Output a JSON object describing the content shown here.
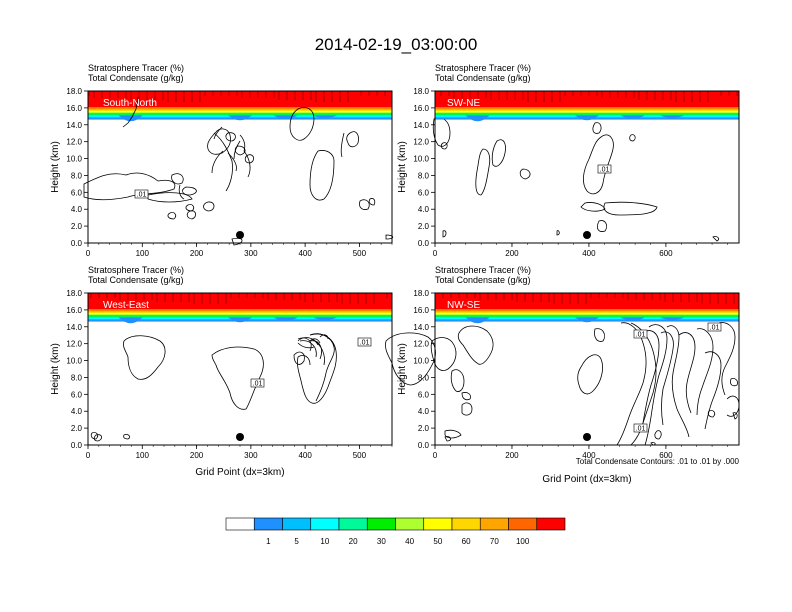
{
  "title": "2014-02-19_03:00:00",
  "header_line1": "Stratosphere Tracer   (%)",
  "header_line2": "Total Condensate   (g/kg)",
  "xlabel": "Grid Point (dx=3km)",
  "ylabel": "Height (km)",
  "contour_note": "Total Condensate Contours: .01 to .01 by .000",
  "contour_label": ".01",
  "colorbar": {
    "labels": [
      "1",
      "5",
      "10",
      "20",
      "30",
      "40",
      "50",
      "60",
      "70",
      "100"
    ],
    "colors": [
      "#ffffff",
      "#1e90ff",
      "#00bfff",
      "#00ffff",
      "#00fa9a",
      "#00ee00",
      "#adff2f",
      "#ffff00",
      "#ffd700",
      "#ffa500",
      "#ff6600",
      "#ff0000"
    ]
  },
  "chart_data": [
    {
      "type": "contour",
      "region": "South-North",
      "x_ticks": [
        "0",
        "100",
        "200",
        "300",
        "400",
        "500"
      ],
      "x_tick_values": [
        0,
        100,
        200,
        300,
        400,
        500
      ],
      "xlim": [
        0,
        560
      ],
      "y_ticks": [
        "0.0",
        "2.0",
        "4.0",
        "6.0",
        "8.0",
        "10.0",
        "12.0",
        "14.0",
        "16.0",
        "18.0"
      ],
      "ylim": [
        0,
        18
      ],
      "marker_x": 280,
      "tropopause_km": 15.6
    },
    {
      "type": "contour",
      "region": "SW-NE",
      "x_ticks": [
        "0",
        "200",
        "400",
        "600"
      ],
      "x_tick_values": [
        0,
        200,
        400,
        600
      ],
      "xlim": [
        0,
        790
      ],
      "y_ticks": [
        "0.0",
        "2.0",
        "4.0",
        "6.0",
        "8.0",
        "10.0",
        "12.0",
        "14.0",
        "16.0",
        "18.0"
      ],
      "ylim": [
        0,
        18
      ],
      "marker_x": 395,
      "tropopause_km": 15.6
    },
    {
      "type": "contour",
      "region": "West-East",
      "x_ticks": [
        "0",
        "100",
        "200",
        "300",
        "400",
        "500"
      ],
      "x_tick_values": [
        0,
        100,
        200,
        300,
        400,
        500
      ],
      "xlim": [
        0,
        560
      ],
      "y_ticks": [
        "0.0",
        "2.0",
        "4.0",
        "6.0",
        "8.0",
        "10.0",
        "12.0",
        "14.0",
        "16.0",
        "18.0"
      ],
      "ylim": [
        0,
        18
      ],
      "marker_x": 280,
      "tropopause_km": 15.6
    },
    {
      "type": "contour",
      "region": "NW-SE",
      "x_ticks": [
        "0",
        "200",
        "400",
        "600"
      ],
      "x_tick_values": [
        0,
        200,
        400,
        600
      ],
      "xlim": [
        0,
        790
      ],
      "y_ticks": [
        "0.0",
        "2.0",
        "4.0",
        "6.0",
        "8.0",
        "10.0",
        "12.0",
        "14.0",
        "16.0",
        "18.0"
      ],
      "ylim": [
        0,
        18
      ],
      "marker_x": 395,
      "tropopause_km": 15.6
    }
  ]
}
